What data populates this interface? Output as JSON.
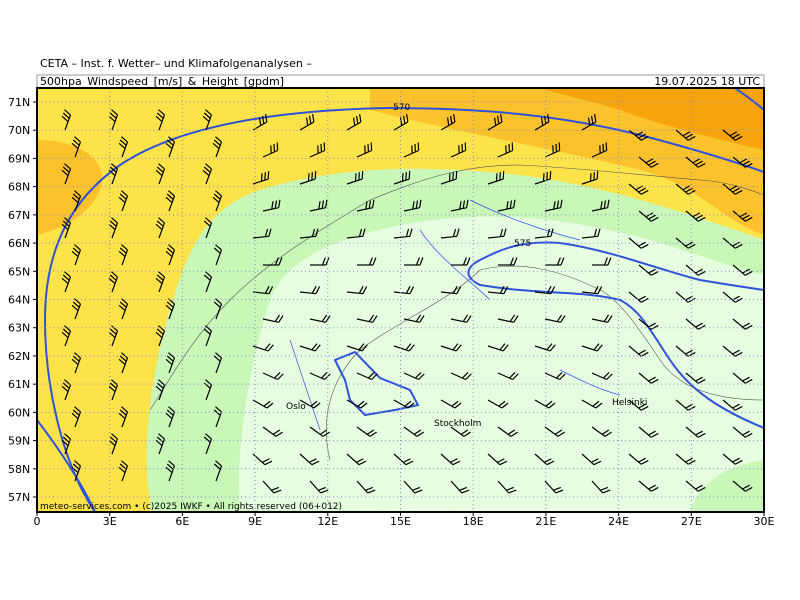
{
  "header": {
    "title": "CETA – Inst. f. Wetter– und Klimafolgenanalysen –",
    "product": "500hpa_Windspeed_[m/s]_&_Height_[gpdm]",
    "valid_time": "19.07.2025 18 UTC"
  },
  "map": {
    "lat_labels": [
      "71N",
      "70N",
      "69N",
      "68N",
      "67N",
      "66N",
      "65N",
      "64N",
      "63N",
      "62N",
      "61N",
      "60N",
      "59N",
      "58N",
      "57N"
    ],
    "lon_labels": [
      "0",
      "3E",
      "6E",
      "9E",
      "12E",
      "15E",
      "18E",
      "21E",
      "24E",
      "27E",
      "30E"
    ],
    "contour_labels": [
      "570",
      "575"
    ],
    "cities": [
      "Oslo",
      "Stockholm",
      "Helsinki"
    ],
    "footer": "meteo-services.com • (c)2025 IWKF • All rights reserved (06+012)"
  }
}
